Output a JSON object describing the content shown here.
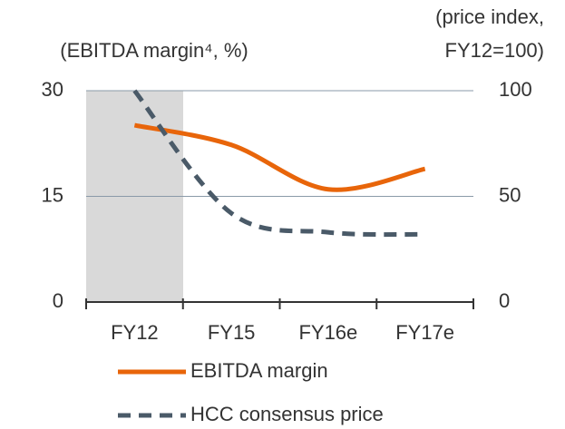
{
  "chart_data": {
    "type": "line",
    "y_label": "(EBITDA margin⁴, %)",
    "y2_label": [
      "(price index,",
      "FY12=100)"
    ],
    "categories": [
      "FY12",
      "FY15",
      "FY16e",
      "FY17e"
    ],
    "series": [
      {
        "name": "EBITDA margin",
        "color": "#e8650a",
        "values": [
          25.1,
          22.3,
          16.0,
          18.9
        ]
      },
      {
        "name": "HCC consensus price",
        "color": "#4a5a68",
        "axis": "y2",
        "dash": true,
        "values": [
          100,
          42,
          33,
          32
        ]
      }
    ],
    "ylim": [
      0,
      30
    ],
    "yticks": [
      0,
      15,
      30
    ],
    "y2lim": [
      0,
      100
    ],
    "y2ticks": [
      0,
      50,
      100
    ],
    "grid": true
  }
}
